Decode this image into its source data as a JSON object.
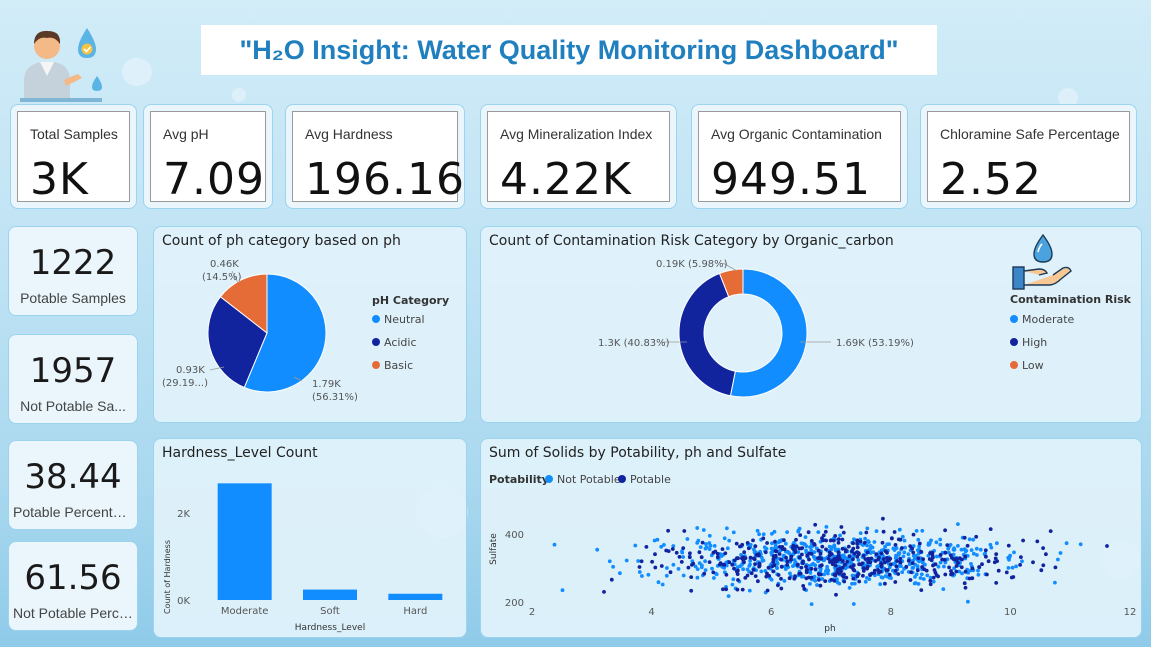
{
  "colors": {
    "title": "#1f7fbf",
    "light_blue": "#118dff",
    "dark_blue": "#12239e",
    "orange": "#e66c37"
  },
  "header": {
    "title": "\"H₂O Insight: Water Quality Monitoring Dashboard\""
  },
  "kpis": [
    {
      "label": "Total Samples",
      "value": "3K"
    },
    {
      "label": "Avg pH",
      "value": "7.09"
    },
    {
      "label": "Avg Hardness",
      "value": "196.16"
    },
    {
      "label": "Avg Mineralization Index",
      "value": "4.22K"
    },
    {
      "label": "Avg Organic Contamination",
      "value": "949.51"
    },
    {
      "label": "Chloramine Safe Percentage",
      "value": "2.52"
    }
  ],
  "side_cards": [
    {
      "value": "1222",
      "label": "Potable Samples"
    },
    {
      "value": "1957",
      "label": "Not Potable Sa..."
    },
    {
      "value": "38.44",
      "label": "Potable Percentage"
    },
    {
      "value": "61.56",
      "label": "Not Potable Perce..."
    }
  ],
  "icons": {
    "person": "person-water-icon",
    "hand": "hand-water-drop-icon"
  },
  "ph_chart": {
    "title": "Count of ph category based on ph",
    "legend_title": "pH Category",
    "legend": [
      "Neutral",
      "Acidic",
      "Basic"
    ],
    "label_neutral_1": "1.79K",
    "label_neutral_2": "(56.31%)",
    "label_acidic_1": "0.93K",
    "label_acidic_2": "(29.19...)",
    "label_basic_1": "0.46K",
    "label_basic_2": "(14.5%)"
  },
  "risk_chart": {
    "title": "Count of Contamination Risk Category by Organic_carbon",
    "legend_title": "Contamination Risk",
    "legend": [
      "Moderate",
      "High",
      "Low"
    ],
    "label_moderate": "1.69K (53.19%)",
    "label_high": "1.3K (40.83%)",
    "label_low": "0.19K (5.98%)"
  },
  "hardness_chart": {
    "title": "Hardness_Level Count",
    "xlabel": "Hardness_Level",
    "ylabel": "Count of Hardness",
    "yticks": [
      "2K",
      "0K"
    ],
    "categories": [
      "Moderate",
      "Soft",
      "Hard"
    ]
  },
  "scatter_chart": {
    "title": "Sum of Solids by Potability, ph and Sulfate",
    "legend_title": "Potability",
    "legend": [
      "Not Potable",
      "Potable"
    ],
    "xlabel": "ph",
    "ylabel": "Sulfate",
    "xticks": [
      "2",
      "4",
      "6",
      "8",
      "10",
      "12"
    ],
    "yticks": [
      "400",
      "200"
    ]
  },
  "chart_data": [
    {
      "type": "pie",
      "title": "Count of ph category based on ph",
      "categories": [
        "Neutral",
        "Acidic",
        "Basic"
      ],
      "values": [
        1790,
        930,
        460
      ],
      "percent": [
        56.31,
        29.19,
        14.5
      ],
      "legend_title": "pH Category",
      "legend_position": "right"
    },
    {
      "type": "pie",
      "title": "Count of Contamination Risk Category by Organic_carbon",
      "categories": [
        "Moderate",
        "High",
        "Low"
      ],
      "values": [
        1690,
        1300,
        190
      ],
      "percent": [
        53.19,
        40.83,
        5.98
      ],
      "legend_title": "Contamination Risk",
      "legend_position": "right"
    },
    {
      "type": "bar",
      "title": "Hardness_Level Count",
      "categories": [
        "Moderate",
        "Soft",
        "Hard"
      ],
      "values": [
        2800,
        250,
        150
      ],
      "xlabel": "Hardness_Level",
      "ylabel": "Count of Hardness",
      "ylim": [
        0,
        3000
      ]
    },
    {
      "type": "scatter",
      "title": "Sum of Solids by Potability, ph and Sulfate",
      "xlabel": "ph",
      "ylabel": "Sulfate",
      "xlim": [
        2,
        12
      ],
      "ylim": [
        180,
        490
      ],
      "series": [
        {
          "name": "Not Potable",
          "center": [
            7.08,
            333
          ],
          "spread": [
            1.5,
            35
          ],
          "count": 650
        },
        {
          "name": "Potable",
          "center": [
            7.08,
            333
          ],
          "spread": [
            1.45,
            38
          ],
          "count": 420
        }
      ],
      "legend_title": "Potability",
      "legend_position": "top-left"
    }
  ]
}
